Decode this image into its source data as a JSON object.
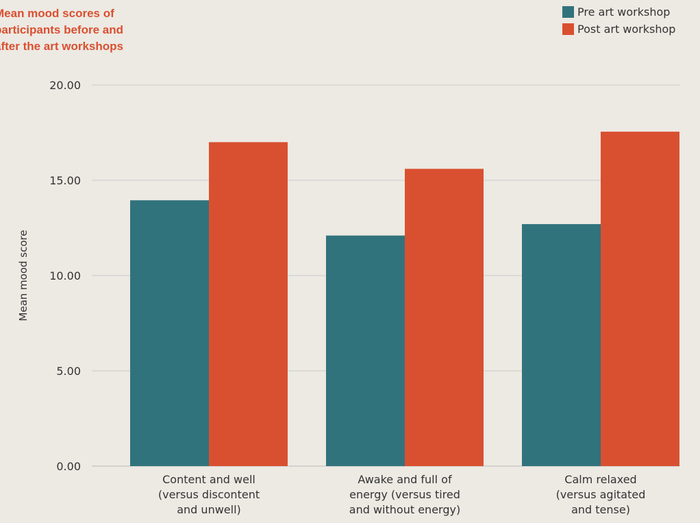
{
  "colors": {
    "background": "#ede9e3",
    "title": "#d95030",
    "pre": "#31737c",
    "post": "#d95030",
    "grid": "#cccccc",
    "text": "#333333"
  },
  "chart_data": {
    "type": "bar",
    "title_lines": [
      "Mean mood scores of",
      "participants before and",
      "after the art workshops"
    ],
    "ylabel": "Mean mood score",
    "xlabel": "",
    "ylim": [
      0,
      20
    ],
    "yticks": [
      "0.00",
      "5.00",
      "10.00",
      "15.00",
      "20.00"
    ],
    "ytick_values": [
      0,
      5,
      10,
      15,
      20
    ],
    "grid": true,
    "legend_position": "top-right",
    "categories": [
      [
        "Content and well",
        "(versus discontent",
        "and unwell)"
      ],
      [
        "Awake and full of",
        "energy (versus tired",
        "and without energy)"
      ],
      [
        "Calm relaxed",
        "(versus agitated",
        "and tense)"
      ]
    ],
    "series": [
      {
        "name": "Pre art workshop",
        "color": "#31737c",
        "values": [
          13.95,
          12.1,
          12.7
        ]
      },
      {
        "name": "Post art workshop",
        "color": "#d95030",
        "values": [
          17.0,
          15.6,
          17.55
        ]
      }
    ]
  }
}
